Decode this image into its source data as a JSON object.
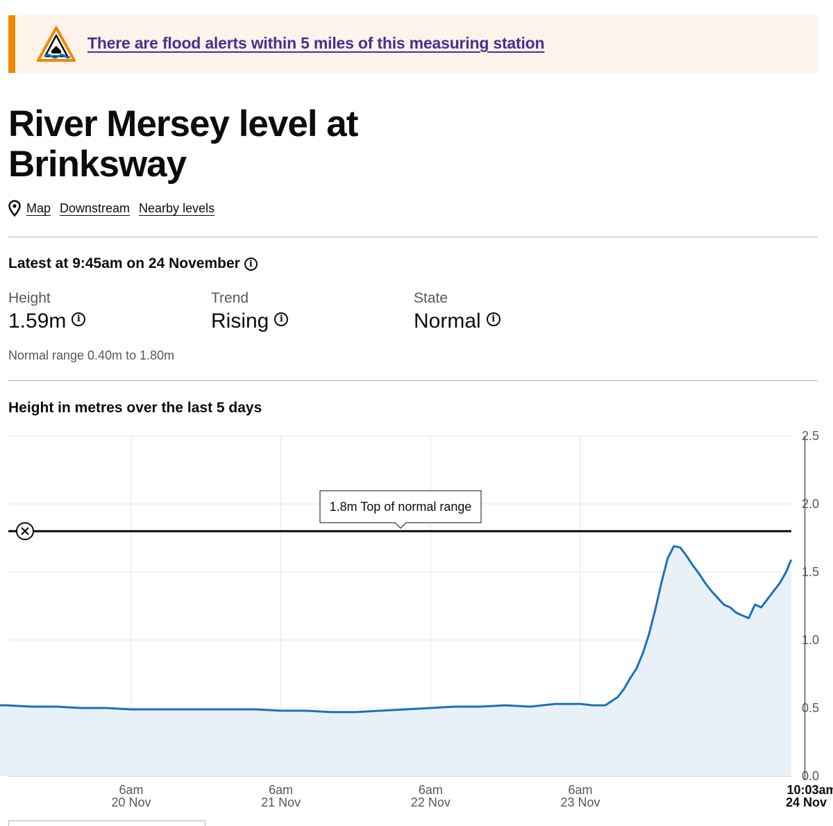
{
  "alert": {
    "text": "There are flood alerts within 5 miles of this measuring station",
    "icon": "flood-warning-icon",
    "accent_color": "#f18800"
  },
  "page": {
    "title": "River Mersey level at Brinksway"
  },
  "links": {
    "map": "Map",
    "downstream": "Downstream",
    "nearby": "Nearby levels"
  },
  "latest": {
    "heading": "Latest at 9:45am on 24 November",
    "height_label": "Height",
    "height_value": "1.59m",
    "trend_label": "Trend",
    "trend_value": "Rising",
    "state_label": "State",
    "state_value": "Normal",
    "normal_range": "Normal range 0.40m to 1.80m"
  },
  "chart_heading": "Height in metres over the last 5 days",
  "chart_data": {
    "type": "area",
    "title": "Height in metres over the last 5 days",
    "xlabel": "",
    "ylabel": "",
    "ylim": [
      0,
      2.5
    ],
    "yticks": [
      "0.0",
      "0.5",
      "1.0",
      "1.5",
      "2.0",
      "2.5"
    ],
    "xticks": [
      {
        "time": "6am",
        "date": "20 Nov"
      },
      {
        "time": "6am",
        "date": "21 Nov"
      },
      {
        "time": "6am",
        "date": "22 Nov"
      },
      {
        "time": "6am",
        "date": "23 Nov"
      },
      {
        "time": "10:03am",
        "date": "24 Nov",
        "bold": true
      }
    ],
    "grid": true,
    "threshold": {
      "value": 1.8,
      "label": "1.8m Top of normal range"
    },
    "line_color": "#1d70b8",
    "fill_color": "#e8f1f8",
    "series": [
      {
        "hours": [
          -31.8,
          -28,
          -24,
          -20,
          -16,
          -12,
          -8,
          -4,
          0,
          4,
          8,
          12,
          16,
          20,
          24,
          28,
          32,
          36,
          40,
          44,
          48,
          52,
          56,
          60,
          64,
          68,
          72,
          74,
          76,
          77,
          78,
          79,
          80,
          81,
          82,
          83,
          84,
          85,
          86,
          87,
          88,
          89,
          90,
          91,
          92,
          93,
          94,
          95,
          96,
          97,
          98,
          99,
          100,
          101,
          102,
          103,
          104,
          105,
          105.8
        ],
        "values": [
          0.52,
          0.52,
          0.52,
          0.52,
          0.51,
          0.51,
          0.5,
          0.5,
          0.49,
          0.49,
          0.49,
          0.49,
          0.49,
          0.49,
          0.48,
          0.48,
          0.47,
          0.47,
          0.48,
          0.49,
          0.5,
          0.51,
          0.51,
          0.52,
          0.51,
          0.53,
          0.53,
          0.52,
          0.52,
          0.55,
          0.58,
          0.64,
          0.72,
          0.79,
          0.9,
          1.04,
          1.22,
          1.42,
          1.6,
          1.69,
          1.68,
          1.62,
          1.55,
          1.49,
          1.42,
          1.36,
          1.31,
          1.26,
          1.24,
          1.2,
          1.18,
          1.16,
          1.26,
          1.24,
          1.3,
          1.36,
          1.42,
          1.5,
          1.59
        ]
      }
    ]
  }
}
